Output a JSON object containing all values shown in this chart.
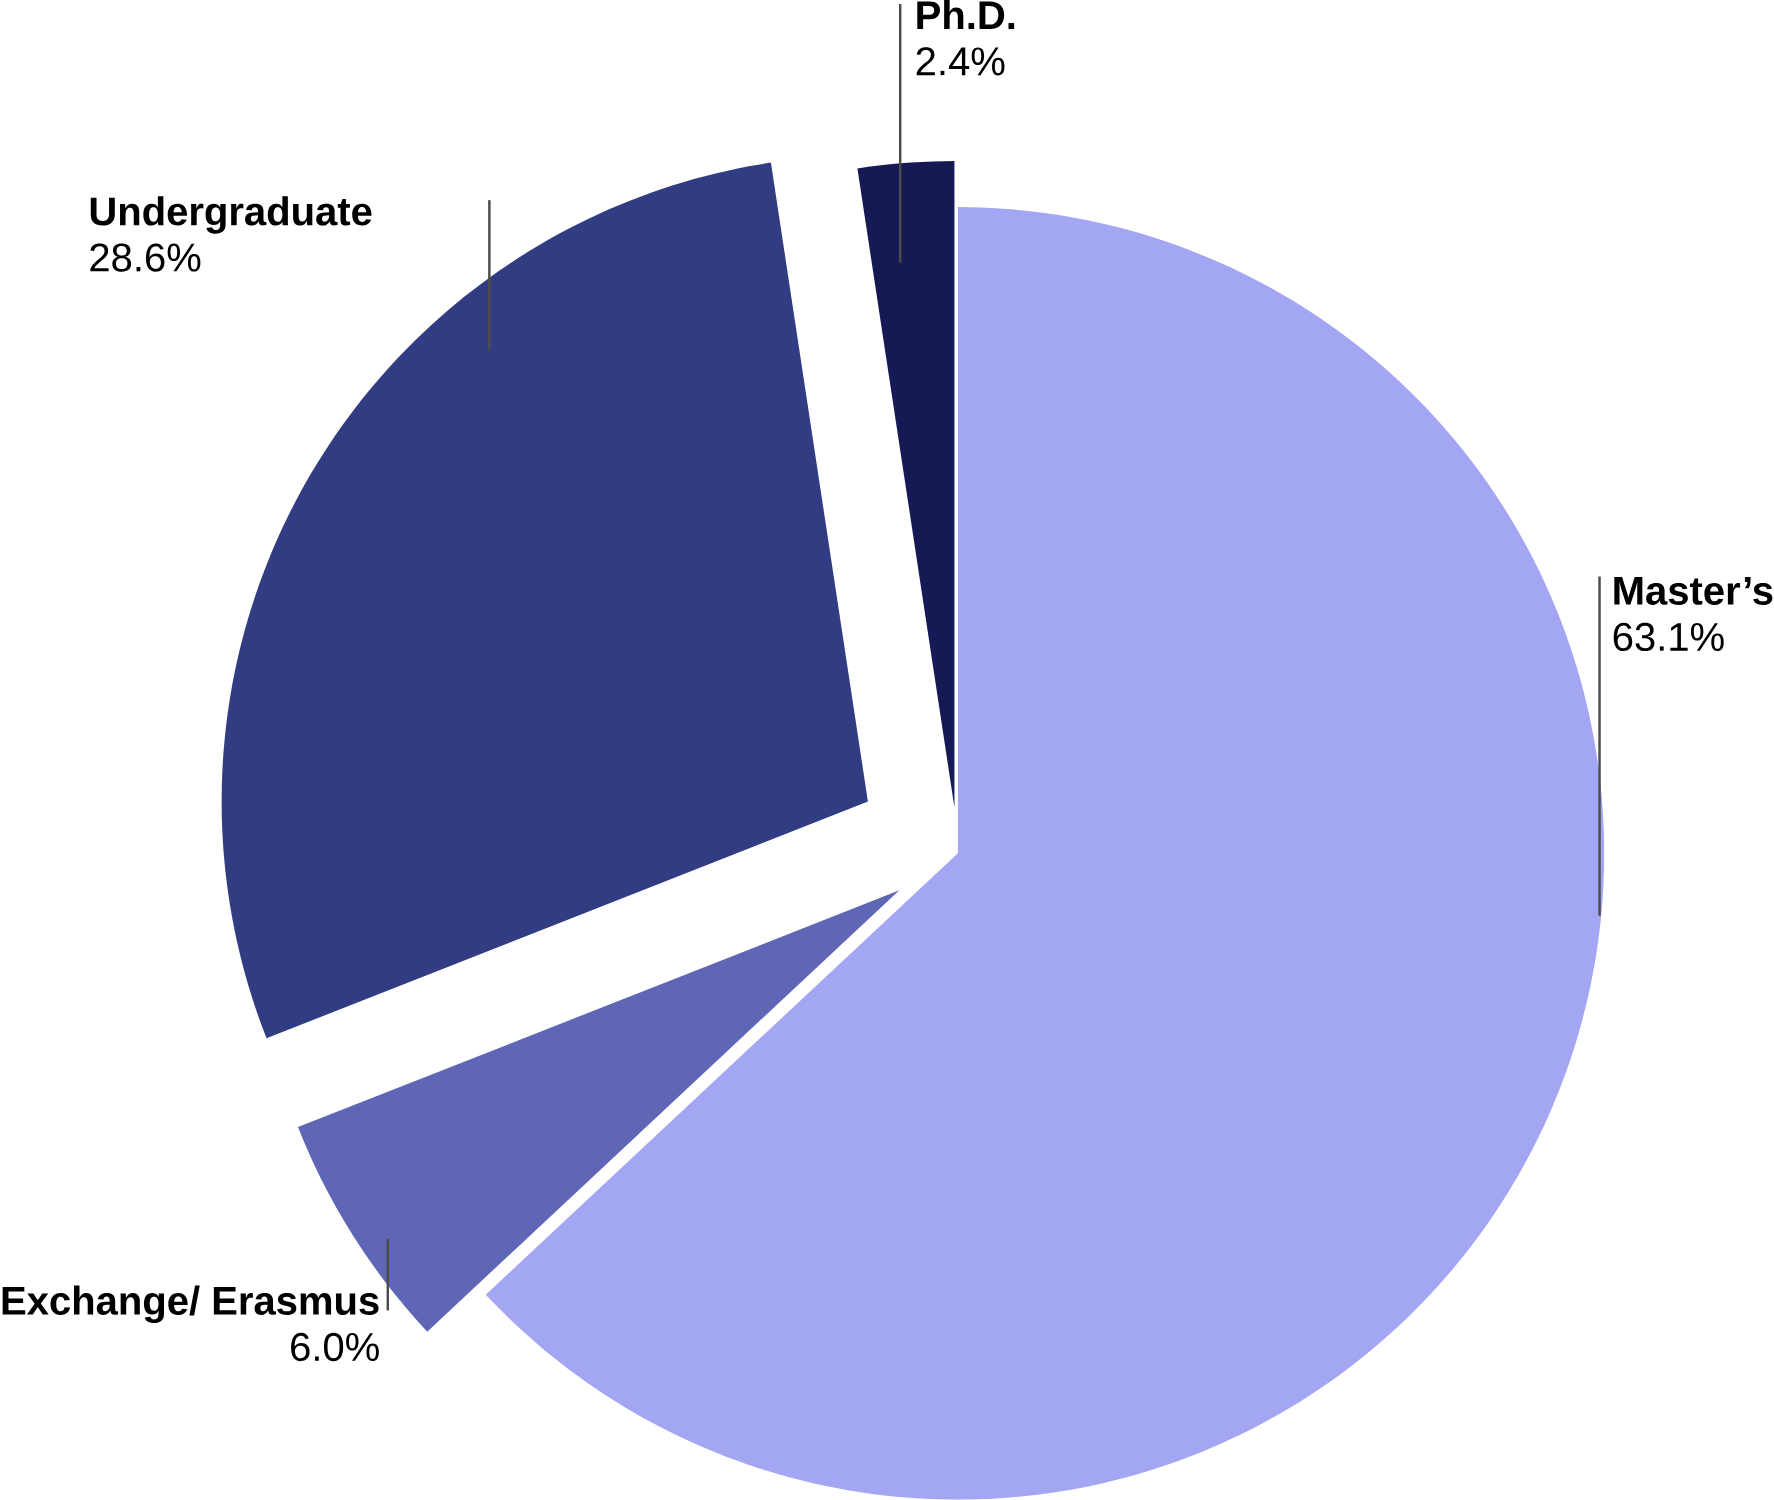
{
  "chart_data": {
    "type": "pie",
    "categories": [
      "Master’s",
      "Exchange/ Erasmus",
      "Undergraduate",
      "Ph.D."
    ],
    "values": [
      63.1,
      6.0,
      28.6,
      2.4
    ],
    "colors": [
      "#a3a6f2",
      "#5f66b5",
      "#323c82",
      "#151a55"
    ],
    "value_labels": [
      "63.1%",
      "6.0%",
      "28.6%",
      "2.4%"
    ]
  }
}
